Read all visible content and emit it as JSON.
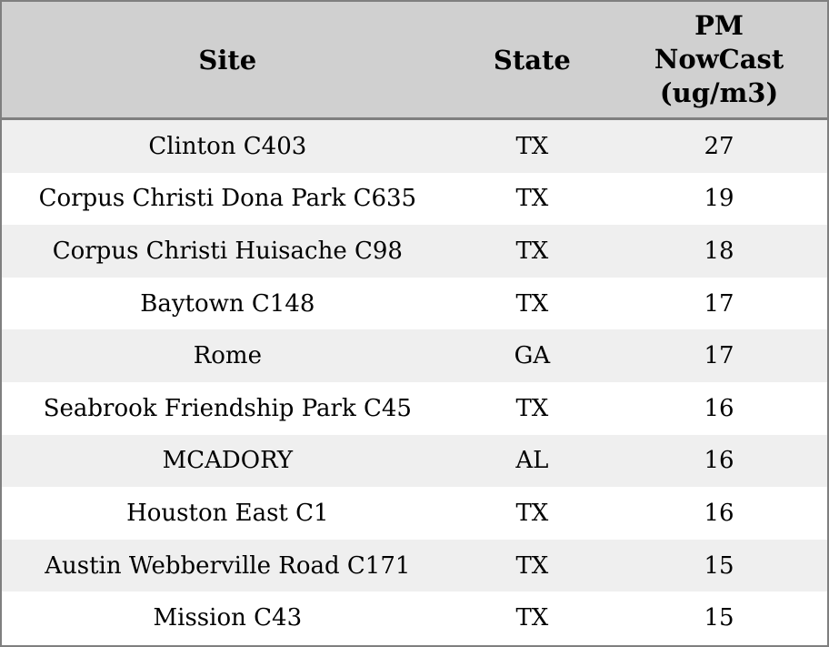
{
  "table": {
    "headers": {
      "site": "Site",
      "state": "State",
      "pm_lines": [
        "PM",
        "NowCast",
        "(ug/m3)"
      ],
      "pm_full": "PM NowCast (ug/m3)"
    },
    "rows": [
      {
        "site": "Clinton C403",
        "state": "TX",
        "pm_nowcast": "27"
      },
      {
        "site": "Corpus Christi Dona Park C635",
        "state": "TX",
        "pm_nowcast": "19"
      },
      {
        "site": "Corpus Christi Huisache C98",
        "state": "TX",
        "pm_nowcast": "18"
      },
      {
        "site": "Baytown C148",
        "state": "TX",
        "pm_nowcast": "17"
      },
      {
        "site": "Rome",
        "state": "GA",
        "pm_nowcast": "17"
      },
      {
        "site": "Seabrook Friendship Park C45",
        "state": "TX",
        "pm_nowcast": "16"
      },
      {
        "site": "MCADORY",
        "state": "AL",
        "pm_nowcast": "16"
      },
      {
        "site": "Houston East C1",
        "state": "TX",
        "pm_nowcast": "16"
      },
      {
        "site": "Austin Webberville Road C171",
        "state": "TX",
        "pm_nowcast": "15"
      },
      {
        "site": "Mission C43",
        "state": "TX",
        "pm_nowcast": "15"
      }
    ]
  },
  "colors": {
    "header_bg": "#d0d0d0",
    "row_odd_bg": "#efefef",
    "row_even_bg": "#ffffff",
    "border": "#7f7f7f",
    "text": "#000000"
  },
  "chart_data": {
    "type": "table",
    "columns": [
      "Site",
      "State",
      "PM NowCast (ug/m3)"
    ],
    "rows": [
      [
        "Clinton C403",
        "TX",
        27
      ],
      [
        "Corpus Christi Dona Park C635",
        "TX",
        19
      ],
      [
        "Corpus Christi Huisache C98",
        "TX",
        18
      ],
      [
        "Baytown C148",
        "TX",
        17
      ],
      [
        "Rome",
        "GA",
        17
      ],
      [
        "Seabrook Friendship Park C45",
        "TX",
        16
      ],
      [
        "MCADORY",
        "AL",
        16
      ],
      [
        "Houston East C1",
        "TX",
        16
      ],
      [
        "Austin Webberville Road C171",
        "TX",
        15
      ],
      [
        "Mission C43",
        "TX",
        15
      ]
    ],
    "title": "",
    "layout_hints": {
      "zebra_striping": true,
      "header_background": "#d0d0d0",
      "all_text_centered": true
    }
  }
}
